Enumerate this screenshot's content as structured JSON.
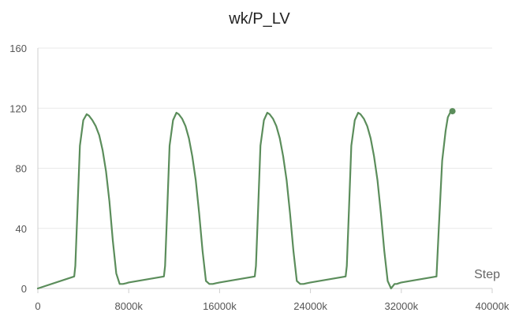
{
  "chart_data": {
    "type": "line",
    "title": "wk/P_LV",
    "xlabel": "Step",
    "ylabel": "",
    "xlim": [
      0,
      40000000
    ],
    "ylim": [
      0,
      160
    ],
    "xticks": [
      0,
      8000000,
      16000000,
      24000000,
      32000000,
      40000000
    ],
    "xtick_labels": [
      "0",
      "8000k",
      "16000k",
      "24000k",
      "32000k",
      "40000k"
    ],
    "yticks": [
      0,
      40,
      80,
      120,
      160
    ],
    "ytick_labels": [
      "0",
      "40",
      "80",
      "120",
      "160"
    ],
    "grid": true,
    "legend": "none",
    "series": [
      {
        "color": "#5b8d5b",
        "x": [
          0,
          3200000,
          3300000,
          3500000,
          3700000,
          4000000,
          4300000,
          4500000,
          4800000,
          5100000,
          5400000,
          5700000,
          6000000,
          6300000,
          6600000,
          6900000,
          7200000,
          7500000,
          7800000,
          8000000,
          11100000,
          11200000,
          11400000,
          11600000,
          11900000,
          12200000,
          12400000,
          12700000,
          13000000,
          13300000,
          13600000,
          13900000,
          14200000,
          14500000,
          14800000,
          15100000,
          15400000,
          15700000,
          16000000,
          19100000,
          19200000,
          19400000,
          19600000,
          19900000,
          20200000,
          20400000,
          20700000,
          21000000,
          21300000,
          21600000,
          21900000,
          22200000,
          22500000,
          22800000,
          23100000,
          23400000,
          23700000,
          24000000,
          27100000,
          27200000,
          27400000,
          27600000,
          27900000,
          28200000,
          28400000,
          28700000,
          29000000,
          29300000,
          29600000,
          29900000,
          30200000,
          30500000,
          30800000,
          31100000,
          31400000,
          31600000,
          31800000,
          32000000,
          35100000,
          35300000,
          35600000,
          35900000,
          36100000,
          36300000,
          36500000
        ],
        "y": [
          0,
          8,
          15,
          55,
          95,
          112,
          116,
          115,
          112,
          108,
          102,
          92,
          78,
          58,
          32,
          10,
          3,
          3,
          3.5,
          4,
          8,
          15,
          55,
          95,
          112,
          117,
          116,
          113,
          108,
          100,
          88,
          72,
          50,
          25,
          5,
          3,
          3,
          3.5,
          4,
          8,
          15,
          55,
          95,
          112,
          117,
          116,
          113,
          108,
          100,
          88,
          72,
          50,
          25,
          5,
          3,
          3,
          3.5,
          4,
          8,
          15,
          55,
          95,
          112,
          117,
          116,
          113,
          108,
          100,
          88,
          72,
          50,
          25,
          5,
          0,
          3,
          3,
          3.5,
          4,
          8,
          40,
          85,
          105,
          114,
          117,
          118
        ]
      }
    ]
  }
}
